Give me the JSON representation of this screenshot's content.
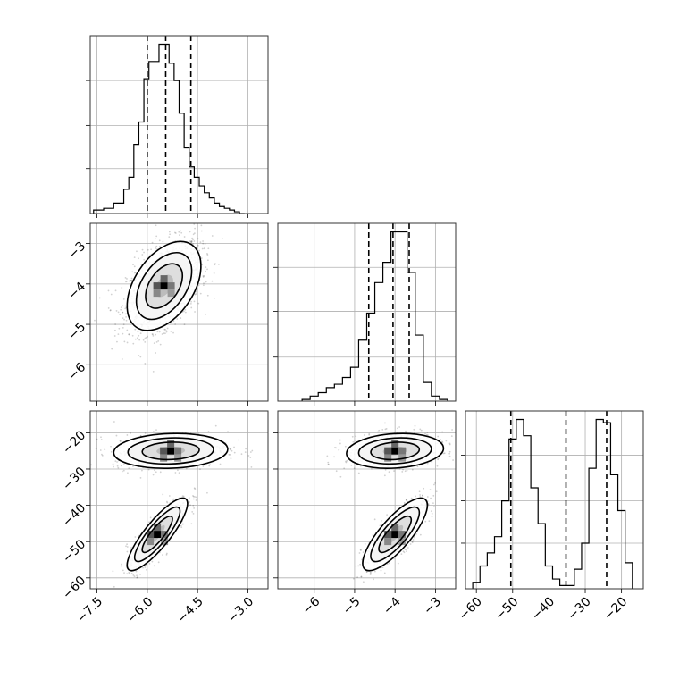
{
  "chart_data": {
    "type": "corner",
    "title": "",
    "parameters": [
      {
        "index": 0,
        "range": [
          -7.7,
          -2.4
        ],
        "ticks": [
          -7.5,
          -6.0,
          -4.5,
          -3.0
        ],
        "tick_labels": [
          "−7.5",
          "−6.0",
          "−4.5",
          "−3.0"
        ]
      },
      {
        "index": 1,
        "range": [
          -6.9,
          -2.5
        ],
        "ticks": [
          -6,
          -5,
          -4,
          -3
        ],
        "tick_labels": [
          "−6",
          "−5",
          "−4",
          "−3"
        ]
      },
      {
        "index": 2,
        "range": [
          -63,
          -14
        ],
        "ticks": [
          -60,
          -50,
          -40,
          -30,
          -20
        ],
        "tick_labels": [
          "−60",
          "−50",
          "−40",
          "−30",
          "−20"
        ]
      }
    ],
    "histograms": [
      {
        "param": 0,
        "quantiles": [
          -6.0,
          -5.45,
          -4.7
        ],
        "bin_edges": [
          -7.6,
          -7.3,
          -7.0,
          -6.7,
          -6.55,
          -6.4,
          -6.25,
          -6.1,
          -5.95,
          -5.8,
          -5.65,
          -5.5,
          -5.35,
          -5.2,
          -5.05,
          -4.9,
          -4.75,
          -4.6,
          -4.45,
          -4.3,
          -4.15,
          -4.0,
          -3.85,
          -3.7,
          -3.55,
          -3.4,
          -3.25,
          -3.1
        ],
        "counts": [
          2,
          3,
          6,
          14,
          21,
          40,
          53,
          78,
          88,
          88,
          98,
          98,
          87,
          77,
          58,
          38,
          27,
          21,
          16,
          12,
          9,
          6,
          4,
          3,
          2,
          1,
          0
        ]
      },
      {
        "param": 1,
        "quantiles": [
          -4.65,
          -4.05,
          -3.65
        ],
        "bin_edges": [
          -6.3,
          -6.1,
          -5.9,
          -5.7,
          -5.5,
          -5.3,
          -5.1,
          -4.9,
          -4.7,
          -4.5,
          -4.3,
          -4.1,
          -3.9,
          -3.7,
          -3.5,
          -3.3,
          -3.1,
          -2.9,
          -2.7
        ],
        "counts": [
          1,
          3,
          5,
          8,
          10,
          14,
          20,
          36,
          52,
          70,
          82,
          100,
          100,
          76,
          39,
          11,
          3,
          1
        ]
      },
      {
        "param": 2,
        "quantiles": [
          -50.5,
          -35.3,
          -24.1
        ],
        "bin_edges": [
          -61,
          -59,
          -57,
          -55,
          -53,
          -51,
          -49,
          -47,
          -45,
          -43,
          -41,
          -39,
          -37,
          -35,
          -33,
          -31,
          -29,
          -27,
          -25,
          -23,
          -21,
          -19,
          -17
        ],
        "counts": [
          2,
          7,
          11,
          16,
          27,
          46,
          52,
          47,
          31,
          20,
          7,
          3,
          1,
          1,
          6,
          14,
          37,
          52,
          51,
          35,
          24,
          8
        ]
      }
    ],
    "scatter_panels": [
      {
        "x_param": 0,
        "y_param": 1,
        "clusters": [
          {
            "center": [
              -5.5,
              -4.05
            ],
            "sigma": [
              0.55,
              0.55
            ],
            "corr": 0.45,
            "n": 1500
          }
        ]
      },
      {
        "x_param": 0,
        "y_param": 2,
        "clusters": [
          {
            "center": [
              -5.3,
              -25.0
            ],
            "sigma": [
              0.85,
              2.4
            ],
            "corr": 0.1,
            "n": 650
          },
          {
            "center": [
              -5.7,
              -48.0
            ],
            "sigma": [
              0.45,
              5.0
            ],
            "corr": 0.85,
            "n": 650
          }
        ]
      },
      {
        "x_param": 1,
        "y_param": 2,
        "clusters": [
          {
            "center": [
              -4.0,
              -25.0
            ],
            "sigma": [
              0.6,
              2.4
            ],
            "corr": 0.15,
            "n": 650
          },
          {
            "center": [
              -4.0,
              -48.0
            ],
            "sigma": [
              0.4,
              5.0
            ],
            "corr": 0.8,
            "n": 650
          }
        ]
      }
    ]
  }
}
